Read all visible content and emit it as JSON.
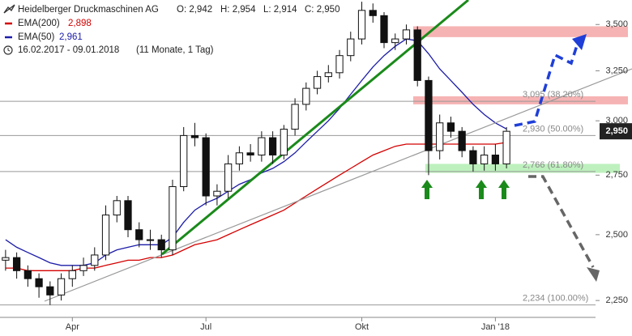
{
  "chart_data": {
    "type": "candlestick",
    "title": "Heidelberger Druckmaschinen AG",
    "ohlc_labels": [
      "O: 2,942",
      "H: 2,954",
      "L: 2,914",
      "C: 2,950"
    ],
    "date_range": "16.02.2017 - 09.01.2018",
    "period": "(11 Monate, 1 Tag)",
    "categories": [
      null,
      null,
      null,
      null,
      null,
      null,
      "Apr",
      null,
      null,
      null,
      null,
      null,
      null,
      null,
      null,
      null,
      null,
      null,
      "Jul",
      null,
      null,
      null,
      null,
      null,
      null,
      null,
      null,
      null,
      null,
      null,
      null,
      null,
      "Okt",
      null,
      null,
      null,
      null,
      null,
      null,
      null,
      null,
      null,
      null,
      null,
      "Jan '18",
      null
    ],
    "open": [
      2.4,
      2.41,
      2.36,
      2.33,
      2.3,
      2.27,
      2.33,
      2.36,
      2.38,
      2.42,
      2.58,
      2.64,
      2.52,
      2.48,
      2.48,
      2.44,
      2.7,
      2.93,
      2.92,
      2.66,
      2.68,
      2.8,
      2.85,
      2.84,
      2.92,
      2.84,
      2.96,
      3.08,
      3.16,
      3.22,
      3.24,
      3.33,
      3.42,
      3.58,
      3.55,
      3.4,
      3.42,
      3.47,
      3.2,
      2.86,
      2.99,
      2.95,
      2.86,
      2.8,
      2.84,
      2.8
    ],
    "high": [
      2.44,
      2.43,
      2.38,
      2.35,
      2.32,
      2.35,
      2.38,
      2.41,
      2.45,
      2.62,
      2.66,
      2.66,
      2.55,
      2.52,
      2.5,
      2.73,
      2.97,
      2.99,
      2.94,
      2.71,
      2.84,
      2.88,
      2.89,
      2.95,
      2.95,
      2.98,
      3.11,
      3.19,
      3.25,
      3.28,
      3.36,
      3.46,
      3.63,
      3.62,
      3.57,
      3.45,
      3.5,
      3.49,
      3.22,
      3.03,
      3.02,
      2.97,
      2.88,
      2.88,
      2.89,
      2.97
    ],
    "low": [
      2.36,
      2.33,
      2.3,
      2.26,
      2.234,
      2.25,
      2.3,
      2.34,
      2.36,
      2.4,
      2.55,
      2.49,
      2.45,
      2.44,
      2.41,
      2.42,
      2.68,
      2.88,
      2.62,
      2.62,
      2.65,
      2.77,
      2.81,
      2.81,
      2.8,
      2.82,
      2.93,
      3.05,
      3.13,
      3.19,
      3.21,
      3.3,
      3.39,
      3.51,
      3.37,
      3.36,
      3.39,
      3.17,
      2.75,
      2.82,
      2.92,
      2.83,
      2.766,
      2.77,
      2.77,
      2.78
    ],
    "close": [
      2.41,
      2.36,
      2.33,
      2.3,
      2.27,
      2.33,
      2.36,
      2.38,
      2.42,
      2.58,
      2.64,
      2.52,
      2.48,
      2.48,
      2.44,
      2.7,
      2.93,
      2.92,
      2.66,
      2.68,
      2.8,
      2.85,
      2.84,
      2.92,
      2.84,
      2.96,
      3.08,
      3.16,
      3.22,
      3.24,
      3.33,
      3.42,
      3.58,
      3.55,
      3.4,
      3.42,
      3.47,
      3.2,
      2.86,
      2.99,
      2.95,
      2.86,
      2.8,
      2.84,
      2.8,
      2.95
    ],
    "up_color": "#ffffff",
    "down_color": "#111111",
    "series": [
      {
        "name": "EMA(200)",
        "color": "#d40000",
        "value_label": "2,898",
        "values": [
          2.37,
          2.37,
          2.36,
          2.36,
          2.36,
          2.36,
          2.36,
          2.37,
          2.37,
          2.38,
          2.39,
          2.4,
          2.4,
          2.41,
          2.41,
          2.42,
          2.44,
          2.46,
          2.47,
          2.48,
          2.5,
          2.52,
          2.54,
          2.56,
          2.58,
          2.6,
          2.63,
          2.66,
          2.69,
          2.72,
          2.75,
          2.78,
          2.81,
          2.84,
          2.86,
          2.88,
          2.89,
          2.89,
          2.89,
          2.89,
          2.89,
          2.89,
          2.89,
          2.89,
          2.89,
          2.898
        ]
      },
      {
        "name": "EMA(50)",
        "color": "#1c1ca8",
        "value_label": "2,961",
        "values": [
          2.48,
          2.45,
          2.43,
          2.41,
          2.39,
          2.38,
          2.38,
          2.38,
          2.39,
          2.42,
          2.44,
          2.45,
          2.46,
          2.46,
          2.46,
          2.49,
          2.55,
          2.6,
          2.63,
          2.65,
          2.68,
          2.71,
          2.73,
          2.76,
          2.78,
          2.81,
          2.85,
          2.9,
          2.95,
          3.0,
          3.06,
          3.13,
          3.2,
          3.27,
          3.33,
          3.38,
          3.42,
          3.41,
          3.34,
          3.26,
          3.2,
          3.14,
          3.08,
          3.03,
          2.99,
          2.961
        ]
      }
    ],
    "levels": [
      {
        "value": 3.095,
        "label": "3,095 (38.20%)"
      },
      {
        "value": 2.93,
        "label": "2,930 (50.00%)"
      },
      {
        "value": 2.766,
        "label": "2,766 (61.80%)"
      },
      {
        "value": 2.234,
        "label": "2,234 (100.00%)"
      }
    ],
    "zones": [
      {
        "low": 3.43,
        "high": 3.49,
        "color": "#f6b3b3"
      },
      {
        "low": 3.08,
        "high": 3.12,
        "color": "#f6b3b3"
      },
      {
        "low": 2.76,
        "high": 2.8,
        "color": "#bdf0bd"
      }
    ],
    "price_tag": {
      "value": 2.95,
      "label": "2,950"
    },
    "ylim": [
      2.19,
      3.64
    ],
    "yticks": [
      {
        "value": 3.5,
        "label": "3,500"
      },
      {
        "value": 3.25,
        "label": "3,250"
      },
      {
        "value": 3.0,
        "label": "3,000"
      },
      {
        "value": 2.75,
        "label": "2,750"
      },
      {
        "value": 2.5,
        "label": "2,500"
      },
      {
        "value": 2.25,
        "label": "2,250"
      }
    ],
    "log_scale": true
  }
}
